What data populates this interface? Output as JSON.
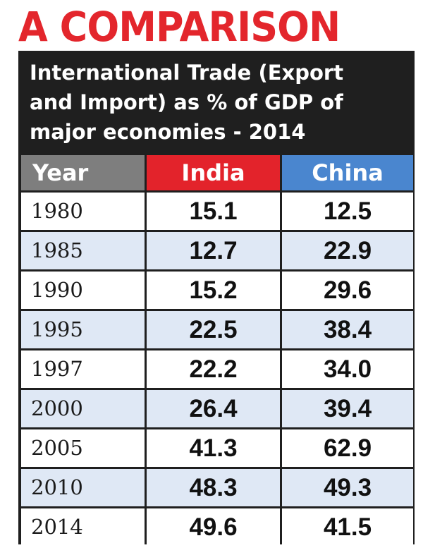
{
  "headline": "A COMPARISON",
  "subtitle_lines": [
    "International Trade (Export",
    "and Import) as % of GDP of",
    "major economies - 2014"
  ],
  "colors": {
    "headline_red": "#e3262c",
    "panel_dark": "#1f1f1f",
    "india_header": "#e3232b",
    "china_header": "#4a86cf",
    "year_header": "#7e7e7e",
    "alt_row": "#dfe8f5"
  },
  "chart_data": {
    "type": "table",
    "title": "International Trade (Export and Import) as % of GDP of major economies - 2014",
    "columns": [
      "Year",
      "India",
      "China"
    ],
    "rows": [
      [
        "1980",
        "15.1",
        "12.5"
      ],
      [
        "1985",
        "12.7",
        "22.9"
      ],
      [
        "1990",
        "15.2",
        "29.6"
      ],
      [
        "1995",
        "22.5",
        "38.4"
      ],
      [
        "1997",
        "22.2",
        "34.0"
      ],
      [
        "2000",
        "26.4",
        "39.4"
      ],
      [
        "2005",
        "41.3",
        "62.9"
      ],
      [
        "2010",
        "48.3",
        "49.3"
      ],
      [
        "2014",
        "49.6",
        "41.5"
      ]
    ]
  }
}
